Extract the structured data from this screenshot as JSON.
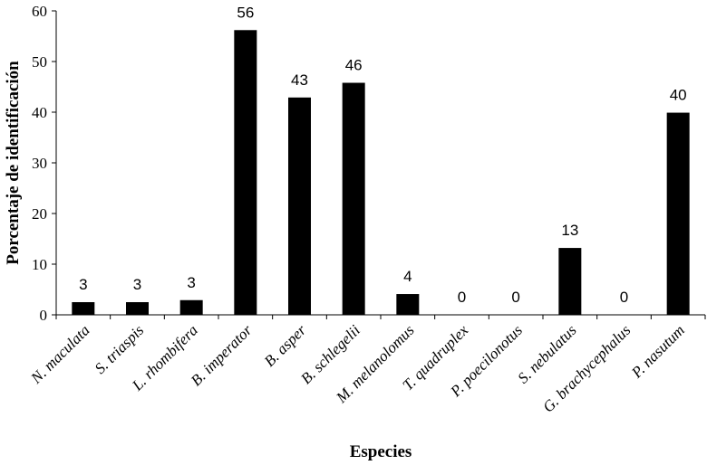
{
  "chart_data": {
    "type": "bar",
    "categories": [
      "N. maculata",
      "S. triaspis",
      "L. rhombifera",
      "B. imperator",
      "B. asper",
      "B. schlegelii",
      "M. melanolomus",
      "T. quadruplex",
      "P. poecilonotus",
      "S. nebulatus",
      "G. brachycephalus",
      "P. nasutum"
    ],
    "values": [
      2.5,
      2.5,
      2.9,
      56.2,
      42.9,
      45.8,
      4.1,
      0,
      0,
      13.2,
      0,
      39.9
    ],
    "data_labels": [
      "3",
      "3",
      "3",
      "56",
      "43",
      "46",
      "4",
      "0",
      "0",
      "13",
      "0",
      "40"
    ],
    "xlabel": "Especies",
    "ylabel": "Porcentaje de identificación",
    "ylim": [
      0,
      60
    ],
    "yticks": [
      "0",
      "10",
      "20",
      "30",
      "40",
      "50",
      "60"
    ],
    "grid": false,
    "bar_color": "#000000"
  }
}
